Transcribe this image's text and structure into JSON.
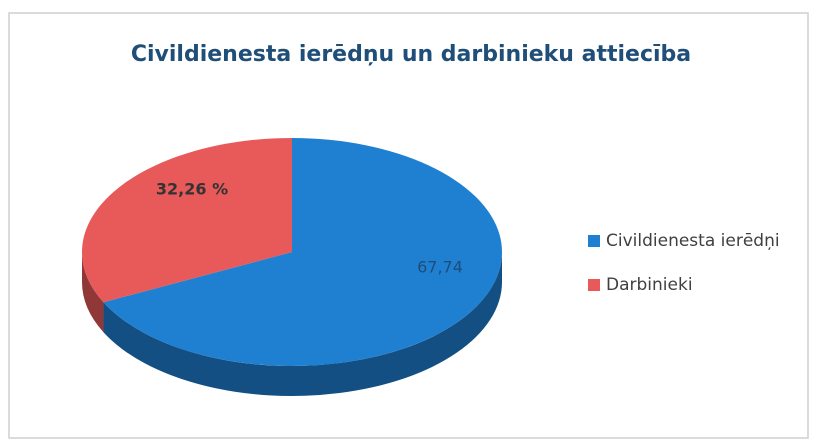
{
  "chart_data": {
    "type": "pie",
    "title": "Civildienesta ierēdņu un darbinieku attiecība",
    "categories": [
      "Civildienesta ierēdņi",
      "Darbinieki"
    ],
    "values": [
      67.74,
      32.26
    ],
    "value_labels": [
      "67,74",
      "32,26 %"
    ],
    "colors": [
      "#1f80d2",
      "#e8595a"
    ],
    "legend": "right"
  }
}
